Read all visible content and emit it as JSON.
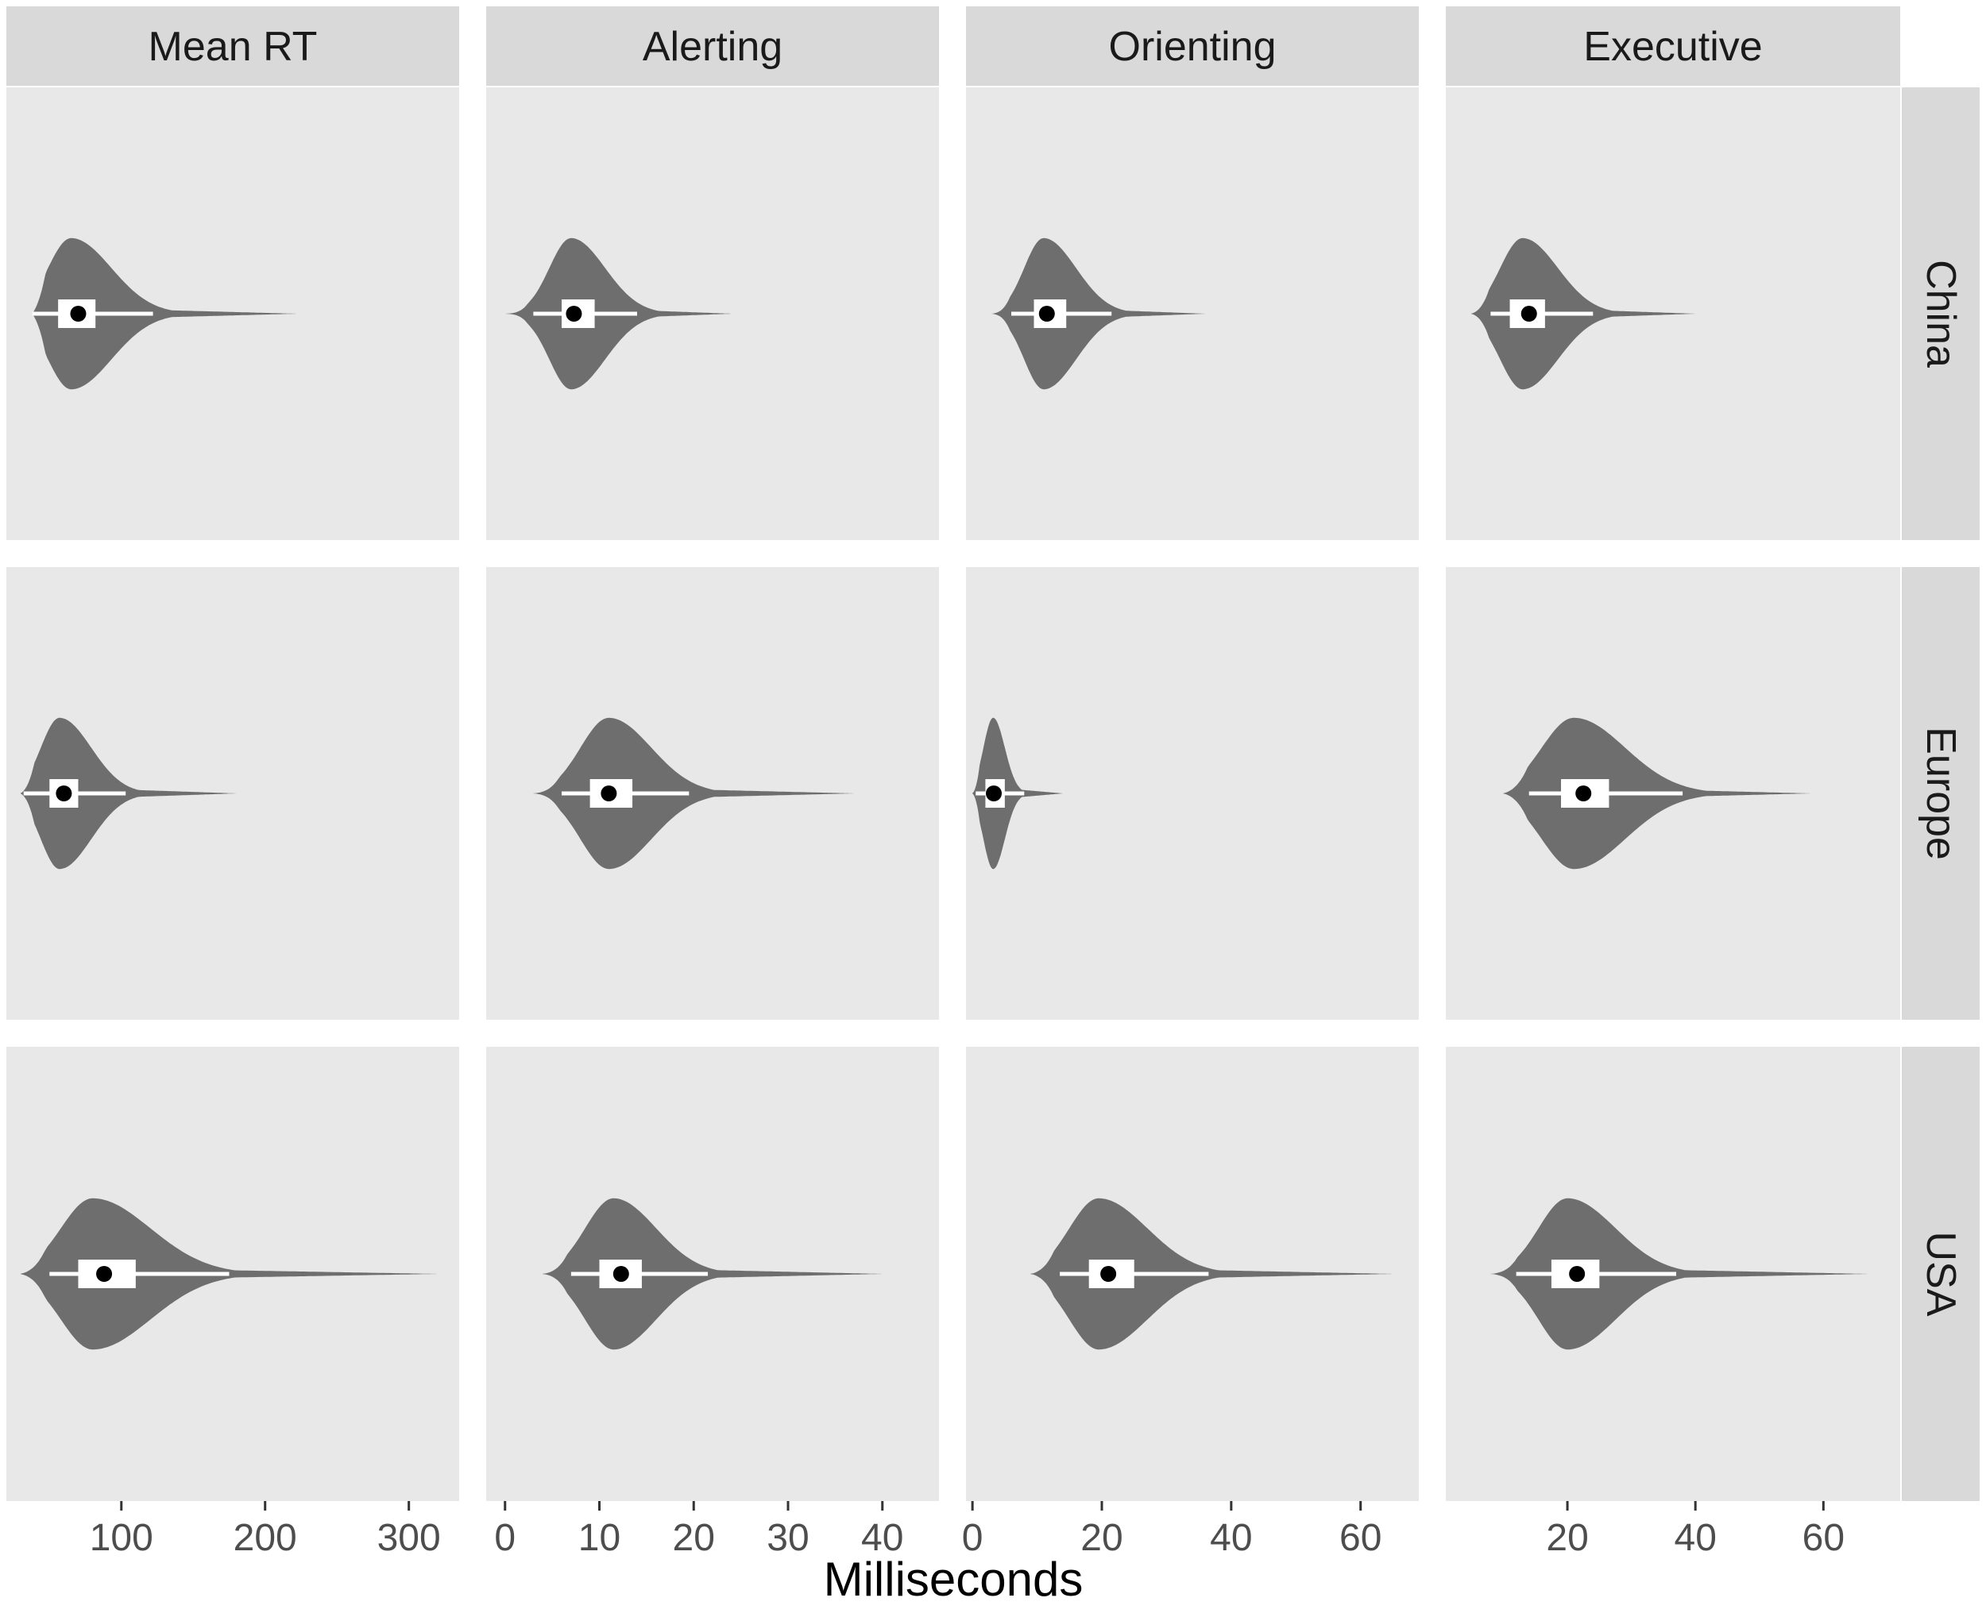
{
  "chart_data": {
    "type": "violin",
    "xlabel": "Milliseconds",
    "ylabel": "",
    "facet_columns": [
      "Mean RT",
      "Alerting",
      "Orienting",
      "Executive"
    ],
    "facet_rows": [
      "China",
      "Europe",
      "USA"
    ],
    "scales": [
      {
        "xlim": [
          20,
          335
        ],
        "ticks": [
          100,
          200,
          300
        ]
      },
      {
        "xlim": [
          -2,
          46
        ],
        "ticks": [
          0,
          10,
          20,
          30,
          40
        ]
      },
      {
        "xlim": [
          -1,
          69
        ],
        "ticks": [
          0,
          20,
          40,
          60
        ]
      },
      {
        "xlim": [
          1,
          72
        ],
        "ticks": [
          20,
          40,
          60
        ]
      }
    ],
    "colors": {
      "violin_fill": "#6e6e6e",
      "box_fill": "#ffffff",
      "median_point": "#000000",
      "panel_background": "#e8e8e8",
      "strip_background": "#d9d9d9"
    },
    "violins": [
      {
        "column": "Mean RT",
        "row": "China",
        "min": 38,
        "q1": 56,
        "median": 70,
        "q3": 82,
        "whisker_low": 38,
        "whisker_high": 122,
        "mode": 65,
        "mode_width": 0.68,
        "sd_left": 16,
        "sd_right": 28,
        "max": 222
      },
      {
        "column": "Alerting",
        "row": "China",
        "min": 0,
        "q1": 6,
        "median": 7.3,
        "q3": 9.5,
        "whisker_low": 3,
        "whisker_high": 14,
        "mode": 7,
        "mode_width": 0.68,
        "sd_left": 2.3,
        "sd_right": 3.6,
        "max": 24
      },
      {
        "column": "Orienting",
        "row": "China",
        "min": 3,
        "q1": 9.5,
        "median": 11.5,
        "q3": 14.5,
        "whisker_low": 6,
        "whisker_high": 21.5,
        "mode": 11,
        "mode_width": 0.68,
        "sd_left": 3,
        "sd_right": 5,
        "max": 36
      },
      {
        "column": "Executive",
        "row": "China",
        "min": 5,
        "q1": 11,
        "median": 14,
        "q3": 16.5,
        "whisker_low": 8,
        "whisker_high": 24,
        "mode": 13,
        "mode_width": 0.68,
        "sd_left": 3.5,
        "sd_right": 5.5,
        "max": 40
      },
      {
        "column": "Mean RT",
        "row": "Europe",
        "min": 30,
        "q1": 50,
        "median": 60,
        "q3": 70,
        "whisker_low": 32,
        "whisker_high": 103,
        "mode": 57,
        "mode_width": 0.68,
        "sd_left": 13,
        "sd_right": 22,
        "max": 180
      },
      {
        "column": "Alerting",
        "row": "Europe",
        "min": 3,
        "q1": 9,
        "median": 11,
        "q3": 13.5,
        "whisker_low": 6,
        "whisker_high": 19.5,
        "mode": 11,
        "mode_width": 0.68,
        "sd_left": 3,
        "sd_right": 4.5,
        "max": 37
      },
      {
        "column": "Orienting",
        "row": "Europe",
        "min": 0,
        "q1": 2,
        "median": 3.3,
        "q3": 5,
        "whisker_low": 0.5,
        "whisker_high": 8,
        "mode": 3.2,
        "mode_width": 0.68,
        "sd_left": 1.5,
        "sd_right": 1.8,
        "max": 14
      },
      {
        "column": "Executive",
        "row": "Europe",
        "min": 10,
        "q1": 19,
        "median": 22.5,
        "q3": 26.5,
        "whisker_low": 14,
        "whisker_high": 38,
        "mode": 21,
        "mode_width": 0.68,
        "sd_left": 5,
        "sd_right": 8,
        "max": 58
      },
      {
        "column": "Mean RT",
        "row": "USA",
        "min": 30,
        "q1": 70,
        "median": 88,
        "q3": 110,
        "whisker_low": 50,
        "whisker_high": 175,
        "mode": 80,
        "mode_width": 0.68,
        "sd_left": 22,
        "sd_right": 40,
        "max": 320
      },
      {
        "column": "Alerting",
        "row": "USA",
        "min": 4,
        "q1": 10,
        "median": 12.3,
        "q3": 14.5,
        "whisker_low": 7,
        "whisker_high": 21.5,
        "mode": 11.5,
        "mode_width": 0.68,
        "sd_left": 3,
        "sd_right": 4.5,
        "max": 40
      },
      {
        "column": "Orienting",
        "row": "USA",
        "min": 9,
        "q1": 18,
        "median": 21,
        "q3": 25,
        "whisker_low": 13.5,
        "whisker_high": 36.5,
        "mode": 19.5,
        "mode_width": 0.68,
        "sd_left": 4.5,
        "sd_right": 7.5,
        "max": 65
      },
      {
        "column": "Executive",
        "row": "USA",
        "min": 8,
        "q1": 17.5,
        "median": 21.5,
        "q3": 25,
        "whisker_low": 12,
        "whisker_high": 37,
        "mode": 20,
        "mode_width": 0.68,
        "sd_left": 4.5,
        "sd_right": 7.5,
        "max": 67
      }
    ]
  }
}
